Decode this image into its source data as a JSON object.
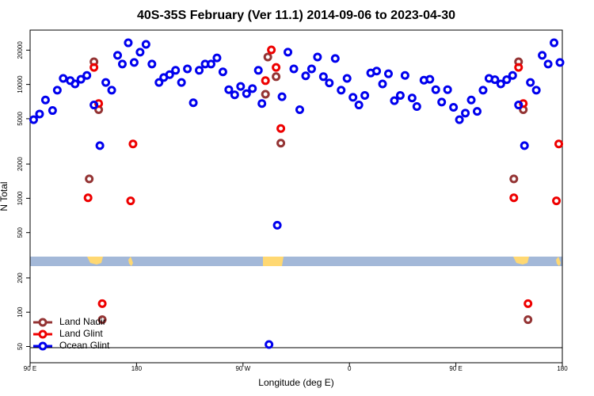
{
  "chart_data": {
    "type": "scatter",
    "title": "40S-35S February (Ver 11.1)   2014-09-06 to 2023-04-30",
    "x_label": "Longitude (deg E)",
    "y_label": "N Total",
    "xlim": [
      90,
      540
    ],
    "ylim": [
      36,
      30000
    ],
    "y_scale": "log",
    "xticks": [
      {
        "value": 90,
        "label": "90 E"
      },
      {
        "value": 180,
        "label": "180"
      },
      {
        "value": 270,
        "label": "90 W"
      },
      {
        "value": 360,
        "label": "0"
      },
      {
        "value": 450,
        "label": "90 E"
      },
      {
        "value": 540,
        "label": "180"
      }
    ],
    "yticks": [
      50,
      100,
      200,
      500,
      1000,
      2000,
      5000,
      10000,
      20000
    ],
    "legend": "bottom-left",
    "series": [
      {
        "name": "Land Nadir",
        "color": "#943434",
        "x": [
          144,
          140,
          148,
          151,
          291,
          298,
          302,
          289,
          503,
          499,
          507,
          511
        ],
        "values": [
          15800,
          1480,
          6000,
          86,
          17400,
          11700,
          3050,
          8200,
          15800,
          1480,
          6000,
          86
        ]
      },
      {
        "name": "Land Glint",
        "color": "#ee0000",
        "x": [
          144,
          139,
          148,
          151,
          177,
          175,
          294,
          298,
          302,
          289,
          503,
          499,
          507,
          511,
          537,
          535
        ],
        "values": [
          14100,
          1010,
          6800,
          119,
          3000,
          950,
          20100,
          14100,
          4100,
          10800,
          14100,
          1010,
          6800,
          119,
          3000,
          950
        ]
      },
      {
        "name": "Ocean Glint",
        "color": "#0000ee",
        "x": [
          93,
          98,
          103,
          109,
          113,
          118,
          124,
          128,
          133,
          138,
          144,
          149,
          154,
          159,
          164,
          168,
          173,
          178,
          183,
          188,
          193,
          199,
          203,
          208,
          213,
          218,
          223,
          228,
          233,
          238,
          243,
          248,
          253,
          258,
          263,
          268,
          273,
          278,
          283,
          286,
          299,
          303,
          308,
          313,
          318,
          323,
          328,
          333,
          338,
          343,
          348,
          353,
          358,
          363,
          368,
          373,
          378,
          383,
          388,
          393,
          398,
          403,
          407,
          413,
          417,
          423,
          428,
          433,
          438,
          443,
          448,
          453,
          458,
          463,
          468,
          473,
          478,
          483,
          488,
          493,
          498,
          503,
          508,
          513,
          518,
          523,
          528,
          533,
          538,
          292
        ],
        "values": [
          4900,
          5500,
          7300,
          5900,
          8900,
          11300,
          10800,
          10100,
          11100,
          12000,
          6600,
          2900,
          10400,
          8900,
          18000,
          15100,
          23200,
          15600,
          19200,
          22500,
          15100,
          10400,
          11500,
          12200,
          13300,
          10400,
          13700,
          6900,
          13300,
          15100,
          15100,
          17100,
          12900,
          9000,
          8100,
          9600,
          8300,
          9200,
          13300,
          6800,
          580,
          7800,
          19200,
          13700,
          6000,
          11900,
          13700,
          17400,
          11700,
          10300,
          16900,
          8900,
          11300,
          7700,
          6600,
          8000,
          12600,
          13100,
          10100,
          12400,
          7200,
          8000,
          12000,
          7600,
          6400,
          10900,
          11100,
          9000,
          7000,
          9000,
          6300,
          4900,
          5600,
          7300,
          5800,
          8900,
          11300,
          11000,
          10100,
          11000,
          12000,
          6600,
          2900,
          10400,
          8900,
          18000,
          15100,
          23200,
          15600,
          52
        ]
      }
    ]
  }
}
